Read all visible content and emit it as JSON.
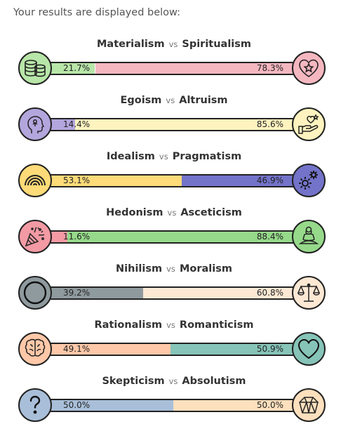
{
  "intro": "Your results are displayed below:",
  "vs": "vs",
  "rows": [
    {
      "left": "Materialism",
      "right": "Spiritualism",
      "left_pct": "21.7%",
      "right_pct": "78.3%",
      "left_value": 21.7,
      "left_color": "#b8e6a8",
      "right_color": "#f4b7c0",
      "left_icon": "coins-icon",
      "right_icon": "heart-star-icon"
    },
    {
      "left": "Egoism",
      "right": "Altruism",
      "left_pct": "14.4%",
      "right_pct": "85.6%",
      "left_value": 14.4,
      "left_color": "#b3a6dd",
      "right_color": "#fff3bf",
      "left_icon": "head-profile-icon",
      "right_icon": "hand-heart-icon"
    },
    {
      "left": "Idealism",
      "right": "Pragmatism",
      "left_pct": "53.1%",
      "right_pct": "46.9%",
      "left_value": 53.1,
      "left_color": "#fddb78",
      "right_color": "#7373c9",
      "left_icon": "rainbow-icon",
      "right_icon": "gears-icon"
    },
    {
      "left": "Hedonism",
      "right": "Asceticism",
      "left_pct": "11.6%",
      "right_pct": "88.4%",
      "left_value": 11.6,
      "left_color": "#f39aa4",
      "right_color": "#96d98a",
      "left_icon": "party-popper-icon",
      "right_icon": "meditation-icon"
    },
    {
      "left": "Nihilism",
      "right": "Moralism",
      "left_pct": "39.2%",
      "right_pct": "60.8%",
      "left_value": 39.2,
      "left_color": "#8f9a9e",
      "right_color": "#fde8d4",
      "left_icon": "empty-circle-icon",
      "right_icon": "scales-icon"
    },
    {
      "left": "Rationalism",
      "right": "Romanticism",
      "left_pct": "49.1%",
      "right_pct": "50.9%",
      "left_value": 49.1,
      "left_color": "#ffc8a8",
      "right_color": "#86c4b8",
      "left_icon": "brain-icon",
      "right_icon": "heart-icon"
    },
    {
      "left": "Skepticism",
      "right": "Absolutism",
      "left_pct": "50.0%",
      "right_pct": "50.0%",
      "left_value": 50.0,
      "left_color": "#a9bfd9",
      "right_color": "#fde0bd",
      "left_icon": "question-mark-icon",
      "right_icon": "crystal-icon"
    }
  ]
}
